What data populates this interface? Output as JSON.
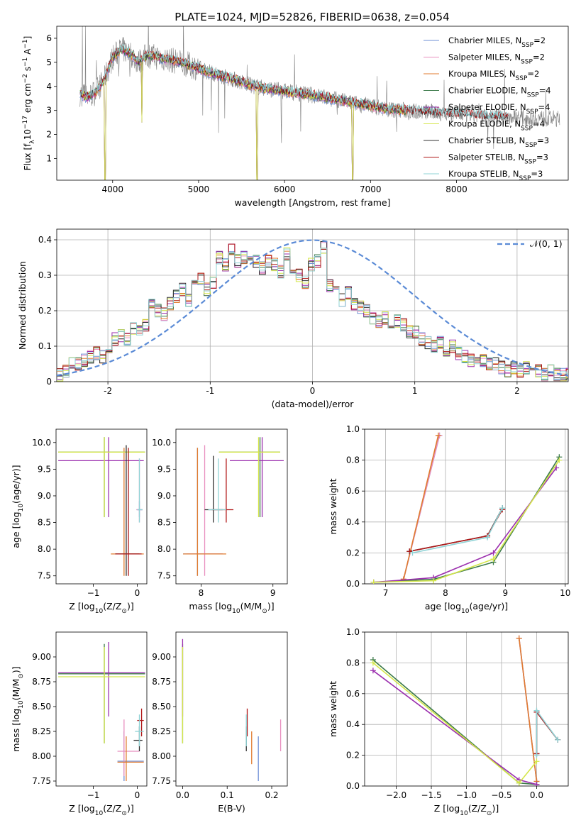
{
  "figure": {
    "title": "PLATE=1024, MJD=52826, FIBERID=0638, z=0.054"
  },
  "models": [
    {
      "name": "Chabrier MILES",
      "nssp": "2",
      "color": "#6e8fd6"
    },
    {
      "name": "Salpeter MILES",
      "nssp": "2",
      "color": "#e88fbf"
    },
    {
      "name": "Kroupa MILES",
      "nssp": "2",
      "color": "#e07b2f"
    },
    {
      "name": "Chabrier ELODIE",
      "nssp": "4",
      "color": "#3c7a4a"
    },
    {
      "name": "Salpeter ELODIE",
      "nssp": "4",
      "color": "#9b2fae"
    },
    {
      "name": "Kroupa ELODIE",
      "nssp": "4",
      "color": "#d4e64a"
    },
    {
      "name": "Chabrier STELIB",
      "nssp": "3",
      "color": "#333333"
    },
    {
      "name": "Salpeter STELIB",
      "nssp": "3",
      "color": "#b01818"
    },
    {
      "name": "Kroupa STELIB",
      "nssp": "3",
      "color": "#8fd3d6"
    }
  ],
  "chart_data": [
    {
      "id": "spectrum",
      "type": "line",
      "xlabel": "wavelength [Angstrom, rest frame]",
      "ylabel": "Flux [f_λ 10^-17 erg cm^-2 s^-1 A^-1]",
      "ylabel_parts": {
        "a": "Flux [f",
        "a_sub": "λ",
        "b": "10",
        "b_sup": "−17",
        "c": " erg cm",
        "c_sup": "−2",
        "d": " s",
        "d_sup": "−1",
        "e": " A",
        "e_sup": "−1",
        "f": "]"
      },
      "xlim": [
        3350,
        9300
      ],
      "ylim": [
        0.1,
        6.5
      ],
      "xticks": [
        4000,
        5000,
        6000,
        7000,
        8000
      ],
      "yticks": [
        1,
        2,
        3,
        4,
        5,
        6
      ],
      "legend": "top-right",
      "legend_nssp_label": "SSP",
      "observed_color": "#808080",
      "continuum": [
        [
          3620,
          3.7
        ],
        [
          3700,
          3.55
        ],
        [
          3800,
          3.75
        ],
        [
          3900,
          4.25
        ],
        [
          4000,
          5.2
        ],
        [
          4100,
          5.55
        ],
        [
          4200,
          5.4
        ],
        [
          4300,
          5.0
        ],
        [
          4400,
          5.3
        ],
        [
          4600,
          5.15
        ],
        [
          4800,
          5.0
        ],
        [
          5000,
          4.75
        ],
        [
          5200,
          4.5
        ],
        [
          5400,
          4.3
        ],
        [
          5600,
          4.05
        ],
        [
          5800,
          3.9
        ],
        [
          6000,
          3.8
        ],
        [
          6200,
          3.7
        ],
        [
          6400,
          3.6
        ],
        [
          6600,
          3.45
        ],
        [
          6800,
          3.3
        ],
        [
          7000,
          3.2
        ],
        [
          7200,
          3.05
        ],
        [
          7400,
          3.0
        ],
        [
          7600,
          2.95
        ],
        [
          7800,
          2.9
        ],
        [
          8000,
          2.85
        ],
        [
          8200,
          2.8
        ],
        [
          8400,
          2.75
        ],
        [
          8800,
          2.7
        ],
        [
          9200,
          2.65
        ]
      ],
      "model_end": 7420,
      "model_dips": [
        [
          3910,
          0.1
        ],
        [
          5680,
          0.1
        ],
        [
          6790,
          0.1
        ],
        [
          4340,
          2.5
        ]
      ]
    },
    {
      "id": "residuals",
      "type": "histogram",
      "xlabel": "(data-model)/error",
      "ylabel": "Normed distribution",
      "xlim": [
        -2.5,
        2.5
      ],
      "ylim": [
        0,
        0.43
      ],
      "xticks": [
        -2,
        -1,
        0,
        1,
        2
      ],
      "yticks": [
        0.0,
        0.1,
        0.2,
        0.3,
        0.4
      ],
      "grid": true,
      "bin_width": 0.1,
      "bin_start": -2.5,
      "base_bins": [
        0.02,
        0.03,
        0.05,
        0.05,
        0.06,
        0.07,
        0.08,
        0.07,
        0.1,
        0.12,
        0.13,
        0.12,
        0.15,
        0.14,
        0.16,
        0.22,
        0.2,
        0.19,
        0.22,
        0.24,
        0.26,
        0.23,
        0.27,
        0.29,
        0.26,
        0.28,
        0.35,
        0.33,
        0.37,
        0.34,
        0.35,
        0.36,
        0.34,
        0.32,
        0.34,
        0.33,
        0.31,
        0.36,
        0.31,
        0.3,
        0.28,
        0.33,
        0.34,
        0.38,
        0.27,
        0.25,
        0.23,
        0.25,
        0.22,
        0.21,
        0.2,
        0.18,
        0.17,
        0.18,
        0.16,
        0.17,
        0.16,
        0.14,
        0.14,
        0.12,
        0.11,
        0.1,
        0.11,
        0.09,
        0.1,
        0.08,
        0.07,
        0.06,
        0.05,
        0.06,
        0.05,
        0.05,
        0.04,
        0.03,
        0.04,
        0.03,
        0.04,
        0.03,
        0.03,
        0.02,
        0.03,
        0.02,
        0.02,
        0.02,
        0.02
      ],
      "gaussian_label": "𝒩(0, 1)",
      "gaussian_color": "#5b8bd6",
      "legend": "top-right"
    },
    {
      "id": "age_vs_Z",
      "type": "errorbar",
      "xlabel_parts": {
        "a": "Z [log",
        "a_sub": "10",
        "b": "(Z/Z",
        "b_sub": "⊙",
        "c": ")]"
      },
      "ylabel_parts": {
        "a": "age  [log",
        "a_sub": "10",
        "b": "(age/yr)]"
      },
      "xlim": [
        -1.85,
        0.22
      ],
      "ylim": [
        7.35,
        10.25
      ],
      "xticks": [
        -1,
        0
      ],
      "xtick_labels": [
        "−1",
        "0"
      ],
      "yticks": [
        7.5,
        8.0,
        8.5,
        9.0,
        9.5,
        10.0
      ],
      "ytick_labels": [
        "7.5",
        "8.0",
        "8.5",
        "9.0",
        "9.5",
        "10.0"
      ],
      "points": [
        {
          "m": 0,
          "x": 0.05,
          "y": 8.74,
          "x0": -0.0,
          "x1": 0.12,
          "y0": 8.6,
          "y1": 8.9
        },
        {
          "m": 1,
          "x": 0.05,
          "y": 8.74,
          "x0": -0.02,
          "x1": 0.12,
          "y0": 8.5,
          "y1": 9.7
        },
        {
          "m": 2,
          "x": -0.3,
          "y": 7.91,
          "x0": -0.6,
          "x1": 0.15,
          "y0": 7.5,
          "y1": 9.9
        },
        {
          "m": 3,
          "x": -0.75,
          "y": 9.82,
          "x0": -1.8,
          "x1": 0.18,
          "y0": 8.6,
          "y1": 10.1
        },
        {
          "m": 4,
          "x": -0.65,
          "y": 9.66,
          "x0": -1.8,
          "x1": 0.15,
          "y0": 8.6,
          "y1": 10.1
        },
        {
          "m": 5,
          "x": -0.75,
          "y": 9.82,
          "x0": -1.8,
          "x1": 0.18,
          "y0": 8.6,
          "y1": 10.1
        },
        {
          "m": 6,
          "x": -0.25,
          "y": 7.91,
          "x0": -0.5,
          "x1": 0.05,
          "y0": 7.5,
          "y1": 9.95
        },
        {
          "m": 7,
          "x": -0.2,
          "y": 7.91,
          "x0": -0.5,
          "x1": 0.1,
          "y0": 7.5,
          "y1": 9.9
        },
        {
          "m": 8,
          "x": 0.05,
          "y": 8.74,
          "x0": -0.0,
          "x1": 0.12,
          "y0": 8.5,
          "y1": 9.7
        }
      ]
    },
    {
      "id": "age_vs_mass",
      "type": "errorbar",
      "xlabel_parts": {
        "a": "mass [log",
        "a_sub": "10",
        "b": "(M/M",
        "b_sub": "⊙",
        "c": ")]"
      },
      "ylabel_parts": {
        "a": "",
        "a_sub": "",
        "b": ""
      },
      "xlim": [
        7.65,
        9.2
      ],
      "ylim": [
        7.35,
        10.25
      ],
      "xticks": [
        8,
        9
      ],
      "xtick_labels": [
        "8",
        "9"
      ],
      "yticks": [
        7.5,
        8.0,
        8.5,
        9.0,
        9.5,
        10.0
      ],
      "ytick_labels": [
        "7.5",
        "8.0",
        "8.5",
        "9.0",
        "9.5",
        "10.0"
      ],
      "points": [
        {
          "m": 0,
          "x": 7.95,
          "y": 7.91,
          "x0": 7.75,
          "x1": 8.3,
          "y0": 7.5,
          "y1": 9.9
        },
        {
          "m": 1,
          "x": 8.05,
          "y": 7.91,
          "x0": 7.8,
          "x1": 8.3,
          "y0": 7.5,
          "y1": 9.95
        },
        {
          "m": 2,
          "x": 7.95,
          "y": 7.91,
          "x0": 7.75,
          "x1": 8.35,
          "y0": 7.5,
          "y1": 9.9
        },
        {
          "m": 3,
          "x": 8.82,
          "y": 9.82,
          "x0": 8.25,
          "x1": 9.1,
          "y0": 8.6,
          "y1": 10.1
        },
        {
          "m": 4,
          "x": 8.85,
          "y": 9.66,
          "x0": 8.4,
          "x1": 9.15,
          "y0": 8.6,
          "y1": 10.1
        },
        {
          "m": 5,
          "x": 8.8,
          "y": 9.82,
          "x0": 8.25,
          "x1": 9.1,
          "y0": 8.6,
          "y1": 10.1
        },
        {
          "m": 6,
          "x": 8.17,
          "y": 8.74,
          "x0": 8.05,
          "x1": 8.3,
          "y0": 8.5,
          "y1": 9.75
        },
        {
          "m": 7,
          "x": 8.35,
          "y": 8.74,
          "x0": 8.15,
          "x1": 8.45,
          "y0": 8.5,
          "y1": 9.7
        },
        {
          "m": 8,
          "x": 8.24,
          "y": 8.74,
          "x0": 8.1,
          "x1": 8.35,
          "y0": 8.5,
          "y1": 9.7
        }
      ]
    },
    {
      "id": "weight_vs_age",
      "type": "line",
      "xlabel_parts": {
        "a": "age  [log",
        "a_sub": "10",
        "b": "(age/yr)]"
      },
      "ylabel": "mass weight",
      "xlim": [
        6.65,
        10.05
      ],
      "ylim": [
        0,
        1
      ],
      "xticks": [
        7,
        8,
        9,
        10
      ],
      "xtick_labels": [
        "7",
        "8",
        "9",
        "10"
      ],
      "yticks": [
        0,
        0.2,
        0.4,
        0.6,
        0.8,
        1.0
      ],
      "ytick_labels": [
        "0.0",
        "0.2",
        "0.4",
        "0.6",
        "0.8",
        "1.0"
      ],
      "grid": true,
      "series": [
        {
          "m": 0,
          "x": [
            7.3,
            7.9
          ],
          "y": [
            0.03,
            0.96
          ]
        },
        {
          "m": 1,
          "x": [
            7.3,
            7.9
          ],
          "y": [
            0.03,
            0.96
          ]
        },
        {
          "m": 2,
          "x": [
            7.3,
            7.88
          ],
          "y": [
            0.03,
            0.96
          ]
        },
        {
          "m": 3,
          "x": [
            6.8,
            7.8,
            8.8,
            9.9
          ],
          "y": [
            0.01,
            0.03,
            0.14,
            0.82
          ]
        },
        {
          "m": 4,
          "x": [
            6.8,
            7.8,
            8.8,
            9.85
          ],
          "y": [
            0.01,
            0.04,
            0.2,
            0.75
          ]
        },
        {
          "m": 5,
          "x": [
            6.8,
            7.8,
            8.8,
            9.9
          ],
          "y": [
            0.01,
            0.02,
            0.16,
            0.8
          ]
        },
        {
          "m": 6,
          "x": [
            7.4,
            8.7,
            8.95
          ],
          "y": [
            0.21,
            0.31,
            0.49
          ]
        },
        {
          "m": 7,
          "x": [
            7.4,
            8.7,
            8.95
          ],
          "y": [
            0.21,
            0.31,
            0.48
          ]
        },
        {
          "m": 8,
          "x": [
            7.45,
            8.7,
            8.95
          ],
          "y": [
            0.2,
            0.3,
            0.49
          ]
        }
      ]
    },
    {
      "id": "mass_vs_Z",
      "type": "errorbar",
      "xlabel_parts": {
        "a": "Z [log",
        "a_sub": "10",
        "b": "(Z/Z",
        "b_sub": "⊙",
        "c": ")]"
      },
      "ylabel_parts": {
        "a": "mass [log",
        "a_sub": "10",
        "b": "(M/M",
        "b_sub": "⊙",
        "c": ")]"
      },
      "xlim": [
        -1.85,
        0.22
      ],
      "ylim": [
        7.7,
        9.25
      ],
      "xticks": [
        -1,
        0
      ],
      "xtick_labels": [
        "−1",
        "0"
      ],
      "yticks": [
        7.75,
        8.0,
        8.25,
        8.5,
        8.75,
        9.0
      ],
      "ytick_labels": [
        "7.75",
        "8.00",
        "8.25",
        "8.50",
        "8.75",
        "9.00"
      ],
      "points": [
        {
          "m": 0,
          "x": -0.3,
          "y": 7.95,
          "x0": -0.45,
          "x1": 0.15,
          "y0": 7.75,
          "y1": 8.25
        },
        {
          "m": 1,
          "x": -0.3,
          "y": 8.05,
          "x0": -0.45,
          "x1": 0.05,
          "y0": 7.8,
          "y1": 8.37
        },
        {
          "m": 2,
          "x": -0.25,
          "y": 7.94,
          "x0": -0.45,
          "x1": 0.15,
          "y0": 7.75,
          "y1": 8.2
        },
        {
          "m": 3,
          "x": -0.75,
          "y": 8.83,
          "x0": -1.8,
          "x1": 0.18,
          "y0": 8.13,
          "y1": 9.13
        },
        {
          "m": 4,
          "x": -0.65,
          "y": 8.84,
          "x0": -1.8,
          "x1": 0.18,
          "y0": 8.4,
          "y1": 9.15
        },
        {
          "m": 5,
          "x": -0.75,
          "y": 8.8,
          "x0": -1.8,
          "x1": 0.18,
          "y0": 8.13,
          "y1": 9.1
        },
        {
          "m": 6,
          "x": 0.05,
          "y": 8.16,
          "x0": -0.08,
          "x1": 0.12,
          "y0": 8.05,
          "y1": 8.3
        },
        {
          "m": 7,
          "x": 0.1,
          "y": 8.36,
          "x0": 0.0,
          "x1": 0.15,
          "y0": 8.2,
          "y1": 8.48
        },
        {
          "m": 8,
          "x": 0.05,
          "y": 8.25,
          "x0": -0.05,
          "x1": 0.15,
          "y0": 8.1,
          "y1": 8.42
        }
      ]
    },
    {
      "id": "mass_vs_ebv",
      "type": "errorbar",
      "xlabel": "E(B-V)",
      "ylabel_parts": {
        "a": "",
        "a_sub": "",
        "b": ""
      },
      "xlim": [
        -0.015,
        0.235
      ],
      "ylim": [
        7.7,
        9.25
      ],
      "xticks": [
        0.0,
        0.1,
        0.2
      ],
      "xtick_labels": [
        "0.0",
        "0.1",
        "0.2"
      ],
      "yticks": [
        7.75,
        8.0,
        8.25,
        8.5,
        8.75,
        9.0
      ],
      "ytick_labels": [
        "7.75",
        "8.00",
        "8.25",
        "8.50",
        "8.75",
        "9.00"
      ],
      "points": [
        {
          "m": 0,
          "x": 0.17,
          "y": 7.95,
          "x0": 0.17,
          "x1": 0.17,
          "y0": 7.75,
          "y1": 8.2
        },
        {
          "m": 1,
          "x": 0.22,
          "y": 8.2,
          "x0": 0.22,
          "x1": 0.22,
          "y0": 8.05,
          "y1": 8.37
        },
        {
          "m": 2,
          "x": 0.155,
          "y": 8.1,
          "x0": 0.155,
          "x1": 0.155,
          "y0": 7.92,
          "y1": 8.25
        },
        {
          "m": 3,
          "x": 0.0,
          "y": 8.6,
          "x0": 0.0,
          "x1": 0.0,
          "y0": 8.13,
          "y1": 9.13
        },
        {
          "m": 4,
          "x": 0.0,
          "y": 8.7,
          "x0": 0.0,
          "x1": 0.0,
          "y0": 8.4,
          "y1": 9.18
        },
        {
          "m": 5,
          "x": 0.0,
          "y": 8.6,
          "x0": 0.0,
          "x1": 0.0,
          "y0": 8.13,
          "y1": 9.1
        },
        {
          "m": 6,
          "x": 0.143,
          "y": 8.2,
          "x0": 0.143,
          "x1": 0.143,
          "y0": 8.05,
          "y1": 8.3
        },
        {
          "m": 7,
          "x": 0.145,
          "y": 8.36,
          "x0": 0.145,
          "x1": 0.145,
          "y0": 8.2,
          "y1": 8.48
        },
        {
          "m": 8,
          "x": 0.143,
          "y": 8.25,
          "x0": 0.143,
          "x1": 0.143,
          "y0": 8.1,
          "y1": 8.42
        }
      ]
    },
    {
      "id": "weight_vs_Z",
      "type": "line",
      "xlabel_parts": {
        "a": "Z [log",
        "a_sub": "10",
        "b": "(Z/Z",
        "b_sub": "⊙",
        "c": ")]"
      },
      "ylabel": "mass weight",
      "xlim": [
        -2.45,
        0.45
      ],
      "ylim": [
        0,
        1
      ],
      "xticks": [
        -2.0,
        -1.5,
        -1.0,
        -0.5,
        0.0
      ],
      "xtick_labels": [
        "−2.0",
        "−1.5",
        "−1.0",
        "−0.5",
        "0.0"
      ],
      "yticks": [
        0,
        0.2,
        0.4,
        0.6,
        0.8,
        1.0
      ],
      "ytick_labels": [
        "0.0",
        "0.2",
        "0.4",
        "0.6",
        "0.8",
        "1.0"
      ],
      "grid": true,
      "series": [
        {
          "m": 0,
          "x": [
            -0.25,
            0.0
          ],
          "y": [
            0.96,
            0.03
          ]
        },
        {
          "m": 1,
          "x": [
            -0.25,
            0.0
          ],
          "y": [
            0.96,
            0.03
          ]
        },
        {
          "m": 2,
          "x": [
            -0.25,
            0.0
          ],
          "y": [
            0.96,
            0.03
          ]
        },
        {
          "m": 3,
          "x": [
            -2.33,
            -0.25,
            0.0
          ],
          "y": [
            0.82,
            0.02,
            0.01
          ]
        },
        {
          "m": 4,
          "x": [
            -2.33,
            -0.25,
            0.0
          ],
          "y": [
            0.75,
            0.04,
            0.01
          ]
        },
        {
          "m": 5,
          "x": [
            -2.33,
            -0.25,
            0.0
          ],
          "y": [
            0.8,
            0.02,
            0.16
          ]
        },
        {
          "m": 6,
          "x": [
            0.0,
            0.0,
            0.3
          ],
          "y": [
            0.21,
            0.48,
            0.3
          ]
        },
        {
          "m": 7,
          "x": [
            0.0,
            0.0,
            0.3
          ],
          "y": [
            0.21,
            0.48,
            0.3
          ]
        },
        {
          "m": 8,
          "x": [
            0.0,
            0.0,
            0.3
          ],
          "y": [
            0.2,
            0.49,
            0.3
          ]
        }
      ]
    }
  ]
}
